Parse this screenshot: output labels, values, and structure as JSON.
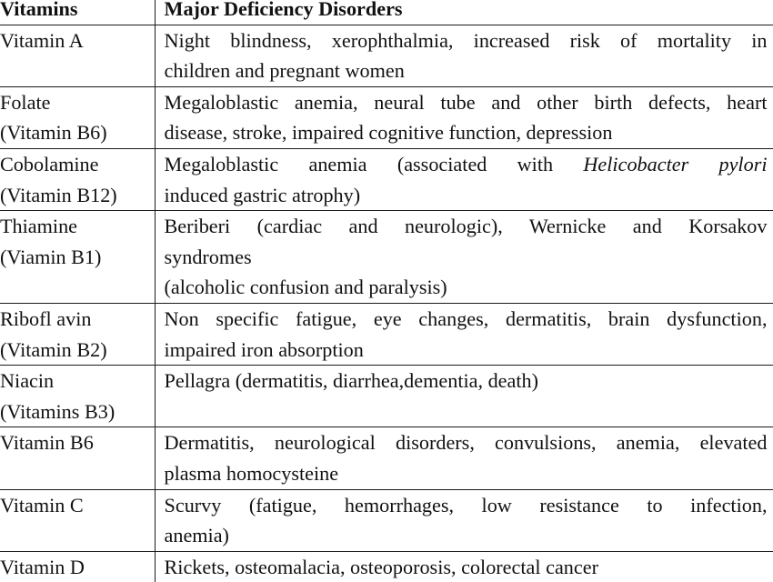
{
  "table": {
    "headers": {
      "vitamins": "Vitamins",
      "disorders": "Major Deficiency Disorders"
    },
    "rows": [
      {
        "vitamin": [
          "Vitamin A"
        ],
        "disorders": [
          "Night blindness, xerophthalmia, increased risk of mortality in",
          "children and pregnant women"
        ]
      },
      {
        "vitamin": [
          "Folate",
          "(Vitamin B6)"
        ],
        "disorders": [
          "Megaloblastic anemia, neural tube and other birth defects, heart",
          "disease, stroke, impaired cognitive function, depression"
        ]
      },
      {
        "vitamin": [
          "Cobolamine",
          "(Vitamin B12)"
        ],
        "disorders_pre": "Megaloblastic anemia (associated with",
        "disorders_italic": "Helicobacter pylori",
        "disorders_line2": "induced gastric atrophy)"
      },
      {
        "vitamin": [
          "Thiamine",
          "(Viamin B1)"
        ],
        "disorders": [
          "Beriberi (cardiac and neurologic), Wernicke and Korsakov",
          "syndromes",
          "(alcoholic confusion and paralysis)"
        ]
      },
      {
        "vitamin": [
          "Ribofl avin",
          "(Vitamin B2)"
        ],
        "disorders": [
          "Non specific fatigue, eye changes, dermatitis, brain dysfunction,",
          "impaired iron absorption"
        ]
      },
      {
        "vitamin": [
          "Niacin",
          "(Vitamins B3)"
        ],
        "disorders": [
          "Pellagra (dermatitis, diarrhea,dementia, death)"
        ]
      },
      {
        "vitamin": [
          "Vitamin B6"
        ],
        "disorders": [
          "Dermatitis, neurological disorders, convulsions, anemia, elevated",
          "plasma homocysteine"
        ]
      },
      {
        "vitamin": [
          "Vitamin C"
        ],
        "disorders": [
          "Scurvy (fatigue, hemorrhages, low resistance to infection,",
          "anemia)"
        ]
      },
      {
        "vitamin": [
          "Vitamin D"
        ],
        "disorders": [
          "Rickets, osteomalacia, osteoporosis, colorectal cancer"
        ]
      }
    ]
  }
}
